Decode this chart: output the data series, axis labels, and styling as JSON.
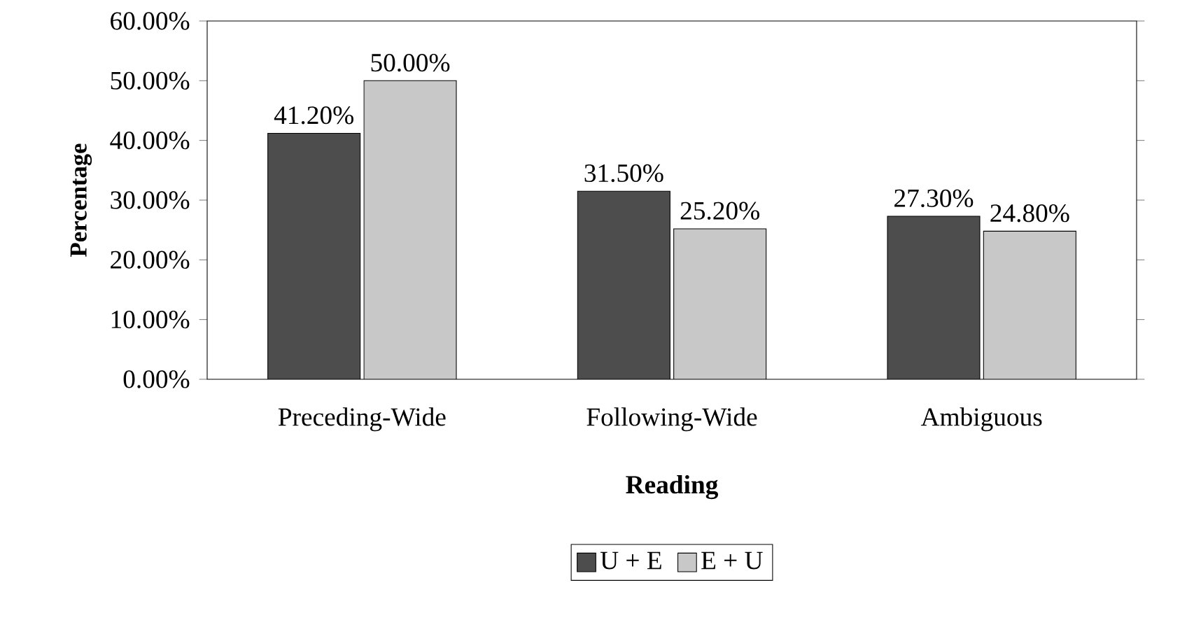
{
  "chart_data": {
    "type": "bar",
    "categories": [
      "Preceding-Wide",
      "Following-Wide",
      "Ambiguous"
    ],
    "series": [
      {
        "name": "U + E",
        "color": "#4d4d4d",
        "values": [
          41.2,
          31.5,
          27.3
        ],
        "value_labels": [
          "41.20%",
          "31.50%",
          "27.30%"
        ]
      },
      {
        "name": "E + U",
        "color": "#c8c8c8",
        "values": [
          50.0,
          25.2,
          24.8
        ],
        "value_labels": [
          "50.00%",
          "25.20%",
          "24.80%"
        ]
      }
    ],
    "xlabel": "Reading",
    "ylabel": "Percentage",
    "ylim": [
      0,
      60
    ],
    "yticks": [
      {
        "value": 0,
        "label": "0.00%"
      },
      {
        "value": 10,
        "label": "10.00%"
      },
      {
        "value": 20,
        "label": "20.00%"
      },
      {
        "value": 30,
        "label": "30.00%"
      },
      {
        "value": 40,
        "label": "40.00%"
      },
      {
        "value": 50,
        "label": "50.00%"
      },
      {
        "value": 60,
        "label": "60.00%"
      }
    ],
    "grid": false,
    "legend": "bottom"
  }
}
